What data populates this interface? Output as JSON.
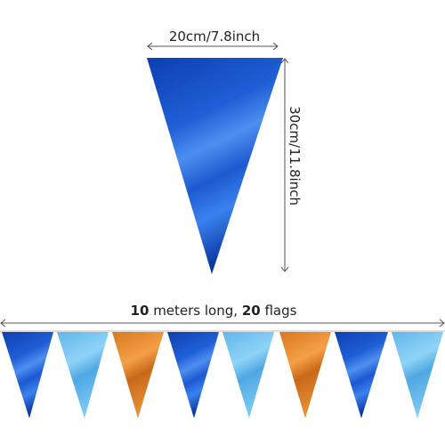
{
  "dimensions": {
    "width": "20cm/7.8inch",
    "height": "30cm/11.8inch"
  },
  "banner": {
    "length_number": "10",
    "length_text": "meters long,",
    "flags_number": "20",
    "flags_text": "flags"
  }
}
